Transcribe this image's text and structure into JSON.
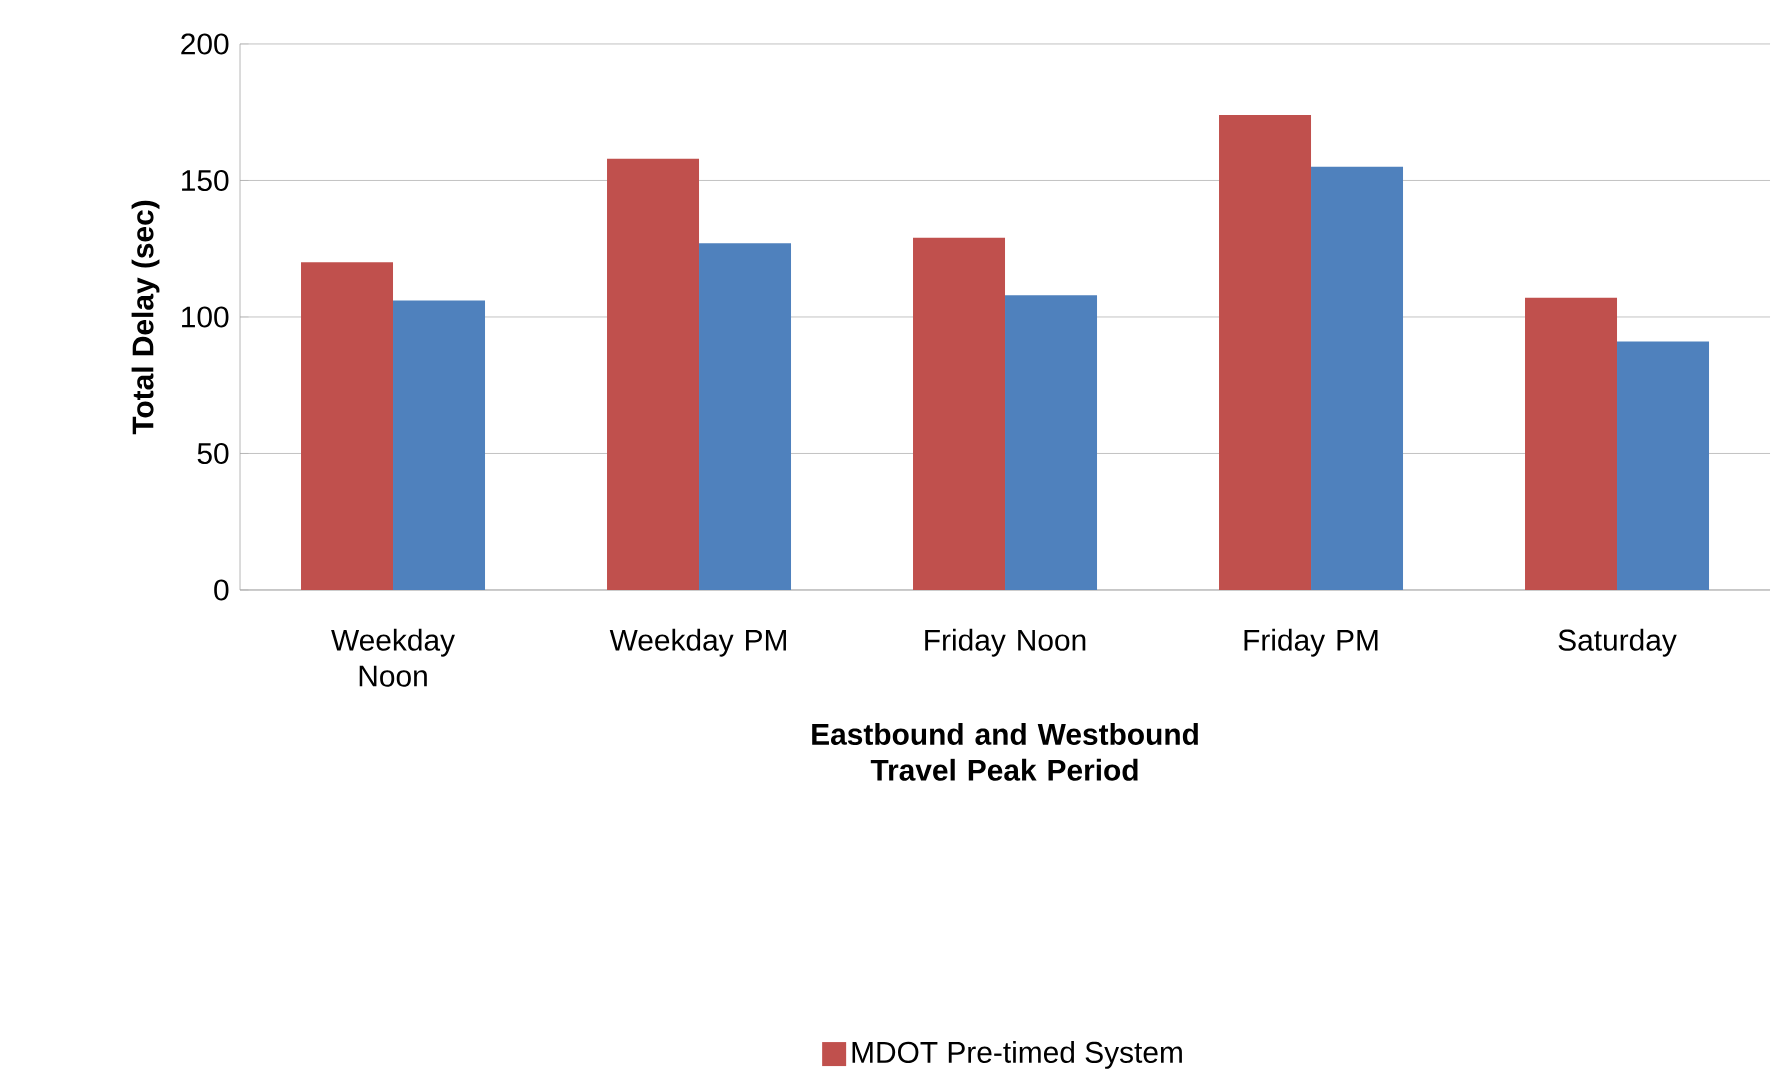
{
  "chart_data": {
    "type": "bar",
    "xlabel": "Eastbound and Westbound Travel Peak Period",
    "ylabel": "Total Delay (sec)",
    "categories": [
      "Weekday Noon",
      "Weekday PM",
      "Friday Noon",
      "Friday PM",
      "Saturday"
    ],
    "series": [
      {
        "name": "MDOT Pre-timed System",
        "color": "#c0504d",
        "values": [
          120,
          158,
          129,
          174,
          107
        ]
      },
      {
        "color": "#4f81bd",
        "values": [
          106,
          127,
          108,
          155,
          91
        ]
      }
    ],
    "ylim": [
      0,
      200
    ],
    "yticks": [
      0,
      50,
      100,
      150,
      200
    ],
    "grid": "y",
    "legend": "bottom"
  }
}
